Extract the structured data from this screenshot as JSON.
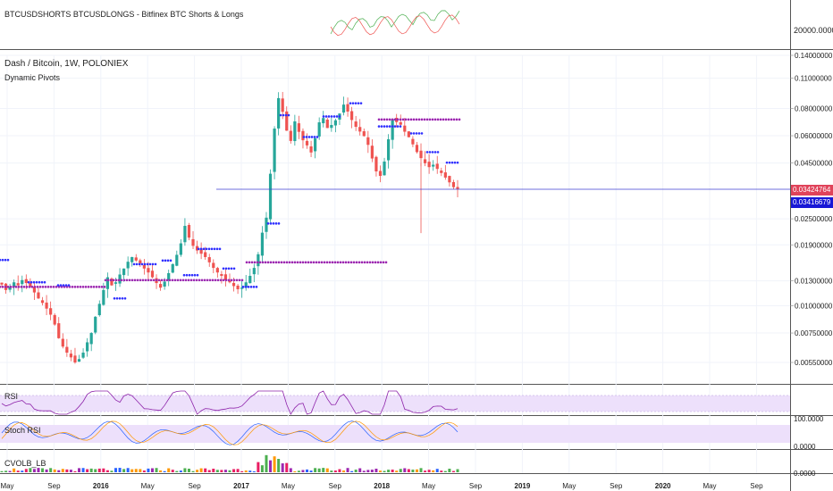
{
  "top_pane": {
    "title": "BTCUSDSHORTS BTCUSDLONGS - Bitfinex BTC Shorts & Longs",
    "axis_label": "20000.0000"
  },
  "main_pane": {
    "title": "Dash / Bitcoin, 1W, POLONIEX",
    "indicator": "Dynamic Pivots",
    "price_tag_red": "0.03424764",
    "price_tag_blue": "0.03416679"
  },
  "rsi_pane": {
    "title": "RSI"
  },
  "stoch_pane": {
    "title": "Stoch RSI",
    "axis_labels": [
      "100.0000",
      "0.0000"
    ]
  },
  "cvol_pane": {
    "title": "CVOLB_LB",
    "axis_label": "0.0000"
  },
  "colors": {
    "up": "#26a69a",
    "down": "#ef5350",
    "pivot_blue": "#3030ff",
    "pivot_purple": "#9c27b0",
    "rsi_band": "#ede0fb",
    "grid": "#f0f3fa",
    "price_line": "#3f3fd0",
    "tag_red": "#e0435a",
    "tag_blue": "#1818d6"
  },
  "chart_data": {
    "type": "candlestick",
    "title": "Dash / Bitcoin, 1W, POLONIEX",
    "y_scale": "log",
    "y_ticks": [
      "0.14000000",
      "0.11000000",
      "0.08000000",
      "0.06000000",
      "0.04500000",
      "0.03424764",
      "0.03416679",
      "0.02500000",
      "0.01900000",
      "0.01300000",
      "0.01000000",
      "0.00750000",
      "0.00550000"
    ],
    "x_ticks": [
      "May",
      "Sep",
      "2016",
      "May",
      "Sep",
      "2017",
      "May",
      "Sep",
      "2018",
      "May",
      "Sep",
      "2019",
      "May",
      "Sep",
      "2020",
      "May",
      "Sep"
    ],
    "closes": [
      0.0125,
      0.0118,
      0.0122,
      0.0128,
      0.0124,
      0.0131,
      0.0127,
      0.0122,
      0.0115,
      0.0108,
      0.0103,
      0.0097,
      0.0091,
      0.0082,
      0.0071,
      0.0065,
      0.0061,
      0.0058,
      0.0055,
      0.0057,
      0.0061,
      0.0068,
      0.0075,
      0.0089,
      0.0102,
      0.0118,
      0.0135,
      0.0124,
      0.0128,
      0.0139,
      0.0148,
      0.0159,
      0.0167,
      0.0161,
      0.0156,
      0.0148,
      0.0142,
      0.0135,
      0.0127,
      0.0121,
      0.0129,
      0.0141,
      0.0155,
      0.0171,
      0.0193,
      0.0232,
      0.0205,
      0.0188,
      0.0179,
      0.0173,
      0.0167,
      0.0158,
      0.0149,
      0.0142,
      0.0137,
      0.0131,
      0.0128,
      0.0123,
      0.0119,
      0.0121,
      0.0128,
      0.0137,
      0.0149,
      0.0172,
      0.0216,
      0.0253,
      0.0402,
      0.0647,
      0.0892,
      0.0772,
      0.0633,
      0.0568,
      0.0698,
      0.0625,
      0.0572,
      0.0542,
      0.0503,
      0.0584,
      0.0691,
      0.0723,
      0.0651,
      0.0672,
      0.0706,
      0.0758,
      0.0833,
      0.0774,
      0.0708,
      0.0659,
      0.0627,
      0.0598,
      0.0545,
      0.0472,
      0.0412,
      0.0393,
      0.0457,
      0.0578,
      0.0715,
      0.0693,
      0.0674,
      0.0626,
      0.0591,
      0.0548,
      0.0505,
      0.0474,
      0.0449,
      0.0431,
      0.0442,
      0.0423,
      0.0405,
      0.0386,
      0.0367,
      0.0349,
      0.0342
    ]
  }
}
